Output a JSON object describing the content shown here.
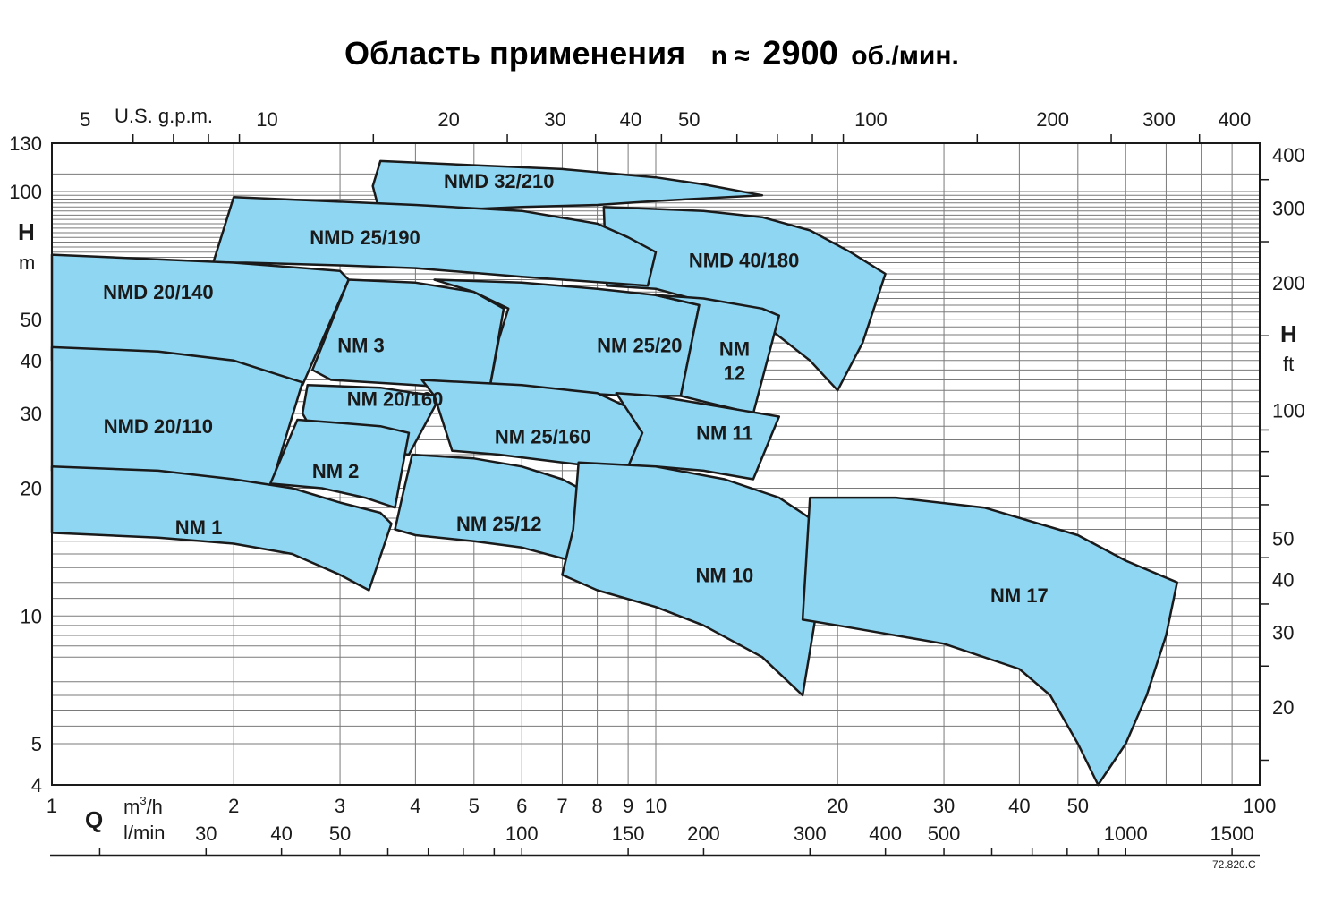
{
  "title": {
    "main": "Область применения",
    "speed_prefix": "n ≈",
    "speed_value": "2900",
    "speed_unit": "об./мин."
  },
  "code": "72.820.C",
  "colors": {
    "region_fill": "#8fd6f2",
    "line": "#1a1a1a",
    "grid": "#7a7a7a"
  },
  "chart_data": {
    "type": "area",
    "x_scale": "log",
    "y_scale": "log",
    "xlim": [
      1,
      100
    ],
    "ylim": [
      4,
      130
    ],
    "grid": true,
    "x_axis": {
      "quantity": "Q",
      "unit_primary": "m³/h",
      "unit_secondary": "l/min",
      "ticks": [
        "1",
        "2",
        "3",
        "4",
        "5",
        "6",
        "7",
        "8",
        "9",
        "10",
        "20",
        "30",
        "40",
        "50",
        "100"
      ],
      "secondary_ticks": [
        "30",
        "40",
        "50",
        "100",
        "150",
        "200",
        "300",
        "400",
        "500",
        "1000",
        "1500"
      ],
      "top_unit": "U.S. g.p.m.",
      "top_ticks": [
        "5",
        "10",
        "20",
        "30",
        "40",
        "50",
        "100",
        "200",
        "300",
        "400"
      ]
    },
    "y_axis": {
      "quantity": "H",
      "unit": "m",
      "ticks": [
        "4",
        "5",
        "10",
        "20",
        "30",
        "40",
        "50",
        "100",
        "130"
      ],
      "right_quantity": "H",
      "right_unit": "ft",
      "right_ticks": [
        "20",
        "30",
        "40",
        "50",
        "100",
        "200",
        "300",
        "400"
      ]
    },
    "regions": [
      {
        "name": "NMD 32/210",
        "label_at": [
          5.5,
          106
        ],
        "points": [
          [
            3.4,
            103
          ],
          [
            3.5,
            118
          ],
          [
            7,
            113
          ],
          [
            10,
            108
          ],
          [
            12,
            104
          ],
          [
            15,
            98
          ],
          [
            10,
            95
          ],
          [
            8,
            93
          ],
          [
            6,
            92
          ],
          [
            5,
            91
          ],
          [
            4.5,
            90
          ],
          [
            4,
            89
          ],
          [
            3.5,
            88
          ]
        ]
      },
      {
        "name": "NMD 40/180",
        "label_at": [
          14,
          69
        ],
        "points": [
          [
            8.2,
            92
          ],
          [
            12,
            90
          ],
          [
            15,
            87
          ],
          [
            18,
            81
          ],
          [
            21,
            72
          ],
          [
            24,
            64
          ],
          [
            22,
            44
          ],
          [
            20,
            34
          ],
          [
            18,
            40
          ],
          [
            15,
            49
          ],
          [
            12,
            55
          ],
          [
            10,
            59
          ],
          [
            8.3,
            60
          ]
        ]
      },
      {
        "name": "NMD 25/190",
        "label_at": [
          3.3,
          78
        ],
        "points": [
          [
            1.85,
            68
          ],
          [
            2,
            97
          ],
          [
            4,
            93
          ],
          [
            6,
            90
          ],
          [
            8,
            84
          ],
          [
            9,
            78
          ],
          [
            10,
            72
          ],
          [
            9.7,
            60
          ],
          [
            6,
            63
          ],
          [
            4,
            66
          ],
          [
            3,
            67
          ],
          [
            2.1,
            68
          ]
        ]
      },
      {
        "name": "NMD 20/140",
        "label_at": [
          1.5,
          58
        ],
        "points": [
          [
            1,
            71
          ],
          [
            2,
            68
          ],
          [
            3,
            65
          ],
          [
            3.1,
            62
          ],
          [
            2.6,
            35
          ],
          [
            2,
            37
          ],
          [
            1.5,
            39
          ],
          [
            1,
            40
          ]
        ]
      },
      {
        "name": "NM 3",
        "label_at": [
          3.25,
          43.5
        ],
        "points": [
          [
            3.1,
            62
          ],
          [
            4,
            61
          ],
          [
            5,
            58
          ],
          [
            5.6,
            53
          ],
          [
            5.3,
            34
          ],
          [
            4,
            35
          ],
          [
            2.9,
            36
          ],
          [
            2.7,
            38
          ]
        ]
      },
      {
        "name": "NM 25/20",
        "label_at": [
          9.4,
          43.5
        ],
        "points": [
          [
            4.3,
            62
          ],
          [
            6,
            61
          ],
          [
            8,
            59
          ],
          [
            10,
            57
          ],
          [
            11.8,
            54
          ],
          [
            11,
            33
          ],
          [
            9,
            33
          ],
          [
            7.5,
            33.5
          ],
          [
            6.5,
            34
          ],
          [
            5.5,
            34
          ],
          [
            5.3,
            34
          ],
          [
            5.5,
            45
          ],
          [
            5.7,
            53
          ],
          [
            5,
            58
          ]
        ]
      },
      {
        "name": "NM 12",
        "label_at": [
          13.5,
          40
        ],
        "points": [
          [
            10,
            57
          ],
          [
            12,
            56
          ],
          [
            15,
            53
          ],
          [
            16,
            51
          ],
          [
            14.5,
            30
          ],
          [
            12,
            32
          ],
          [
            11,
            33
          ],
          [
            11.8,
            54
          ]
        ]
      },
      {
        "name": "NMD 20/110",
        "label_at": [
          1.5,
          28
        ],
        "points": [
          [
            1,
            43
          ],
          [
            1.5,
            42
          ],
          [
            2,
            40
          ],
          [
            2.6,
            35.5
          ],
          [
            2.3,
            20
          ],
          [
            1.5,
            21
          ],
          [
            1,
            22
          ]
        ]
      },
      {
        "name": "NM 20/160",
        "label_at": [
          3.7,
          32.5
        ],
        "points": [
          [
            2.65,
            35
          ],
          [
            3.5,
            34.5
          ],
          [
            4,
            33.5
          ],
          [
            4.4,
            33
          ],
          [
            3.9,
            24
          ],
          [
            3.5,
            24.5
          ],
          [
            2.8,
            25
          ],
          [
            2.6,
            30
          ]
        ]
      },
      {
        "name": "NM 2",
        "label_at": [
          2.95,
          22
        ],
        "points": [
          [
            2.55,
            29
          ],
          [
            3,
            28.5
          ],
          [
            3.5,
            28
          ],
          [
            3.9,
            27
          ],
          [
            3.7,
            18
          ],
          [
            3.3,
            19
          ],
          [
            2.8,
            20
          ],
          [
            2.3,
            20.5
          ]
        ]
      },
      {
        "name": "NM 25/160",
        "label_at": [
          6.5,
          26.5
        ],
        "points": [
          [
            4.1,
            36
          ],
          [
            6,
            35
          ],
          [
            8,
            33.5
          ],
          [
            9,
            31
          ],
          [
            9.5,
            27
          ],
          [
            9,
            22
          ],
          [
            7,
            23
          ],
          [
            5.5,
            24
          ],
          [
            4.6,
            24.5
          ],
          [
            4.3,
            33
          ]
        ]
      },
      {
        "name": "NM 11",
        "label_at": [
          13,
          27
        ],
        "points": [
          [
            8.6,
            33.5
          ],
          [
            10,
            33
          ],
          [
            13,
            31
          ],
          [
            16,
            29.5
          ],
          [
            14.5,
            21
          ],
          [
            12,
            22
          ],
          [
            10,
            22.5
          ],
          [
            9,
            22.5
          ],
          [
            9.5,
            27
          ]
        ]
      },
      {
        "name": "NM 1",
        "label_at": [
          1.75,
          16.2
        ],
        "points": [
          [
            1,
            22.5
          ],
          [
            1.5,
            22
          ],
          [
            2,
            21
          ],
          [
            2.5,
            20
          ],
          [
            3,
            18.5
          ],
          [
            3.5,
            17.5
          ],
          [
            3.65,
            16.5
          ],
          [
            3.35,
            11.5
          ],
          [
            3,
            12.5
          ],
          [
            2.5,
            14
          ],
          [
            2,
            14.8
          ],
          [
            1.5,
            15.3
          ],
          [
            1,
            15.7
          ]
        ]
      },
      {
        "name": "NM 25/12",
        "label_at": [
          5.5,
          16.5
        ],
        "points": [
          [
            3.95,
            24
          ],
          [
            5,
            23.5
          ],
          [
            6,
            22.5
          ],
          [
            7,
            21
          ],
          [
            8,
            19
          ],
          [
            9,
            17
          ],
          [
            8.7,
            11.8
          ],
          [
            8,
            13
          ],
          [
            6,
            14.5
          ],
          [
            5,
            15
          ],
          [
            4,
            15.5
          ],
          [
            3.7,
            16
          ],
          [
            3.8,
            19
          ]
        ]
      },
      {
        "name": "NM 10",
        "label_at": [
          13,
          12.5
        ],
        "points": [
          [
            7.45,
            23
          ],
          [
            10,
            22.5
          ],
          [
            13,
            21
          ],
          [
            16,
            19
          ],
          [
            18,
            17
          ],
          [
            19.5,
            16.5
          ],
          [
            17.5,
            6.5
          ],
          [
            15,
            8
          ],
          [
            12,
            9.5
          ],
          [
            10,
            10.5
          ],
          [
            8,
            11.5
          ],
          [
            7,
            12.5
          ],
          [
            7.3,
            16
          ]
        ]
      },
      {
        "name": "NM 17",
        "label_at": [
          40,
          11.2
        ],
        "points": [
          [
            18,
            19
          ],
          [
            25,
            19
          ],
          [
            35,
            18
          ],
          [
            50,
            15.5
          ],
          [
            60,
            13.5
          ],
          [
            73,
            12
          ],
          [
            70,
            9
          ],
          [
            65,
            6.5
          ],
          [
            60,
            5
          ],
          [
            54,
            4
          ],
          [
            50,
            5
          ],
          [
            45,
            6.5
          ],
          [
            40,
            7.5
          ],
          [
            30,
            8.6
          ],
          [
            20,
            9.5
          ],
          [
            17.5,
            9.8
          ]
        ]
      }
    ]
  }
}
